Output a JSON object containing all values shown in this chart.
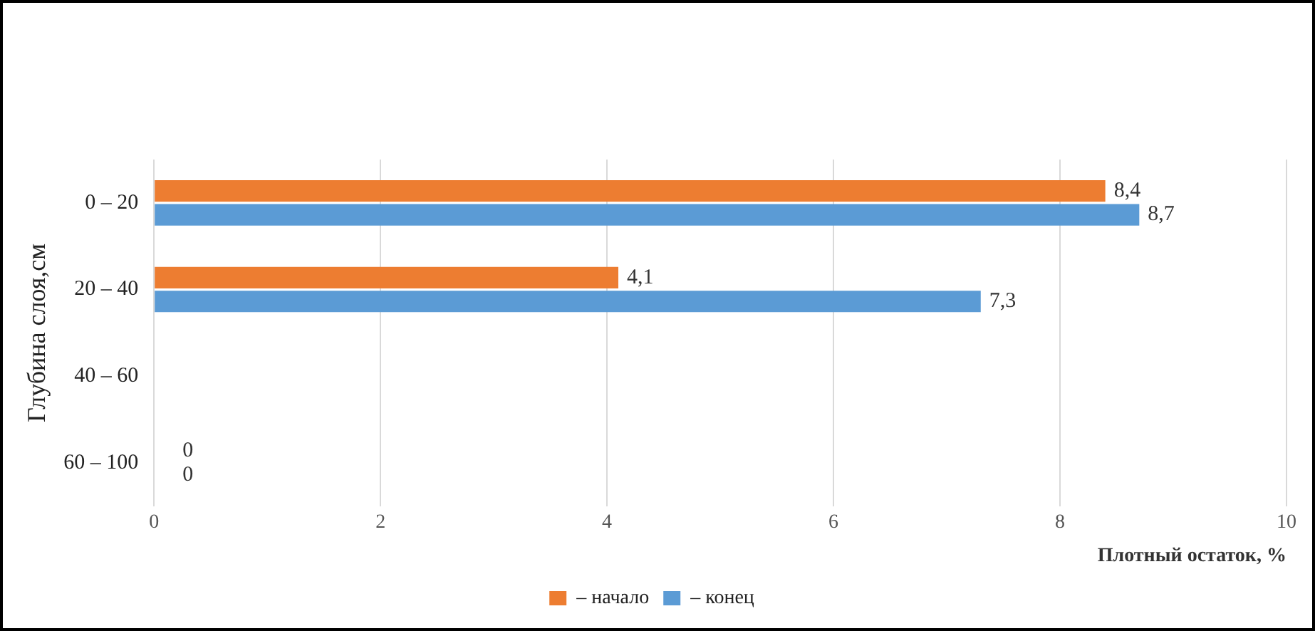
{
  "chart_data": {
    "type": "bar",
    "orientation": "horizontal",
    "categories": [
      "0 – 20",
      "20 – 40",
      "40 – 60",
      "60 – 100"
    ],
    "series": [
      {
        "name": "– начало",
        "color": "#ed7d31",
        "values": [
          8.4,
          4.1,
          null,
          0
        ],
        "value_labels": [
          "8,4",
          "4,1",
          null,
          "0"
        ]
      },
      {
        "name": "– конец",
        "color": "#5b9bd5",
        "values": [
          8.7,
          7.3,
          null,
          0
        ],
        "value_labels": [
          "8,7",
          "7,3",
          null,
          "0"
        ]
      }
    ],
    "xlabel": "Плотный остаток, %",
    "ylabel": "Глубина слоя,см",
    "xlim": [
      0,
      10
    ],
    "xticks": [
      0,
      2,
      4,
      6,
      8,
      10
    ],
    "grid": "x",
    "legend": "bottom"
  }
}
